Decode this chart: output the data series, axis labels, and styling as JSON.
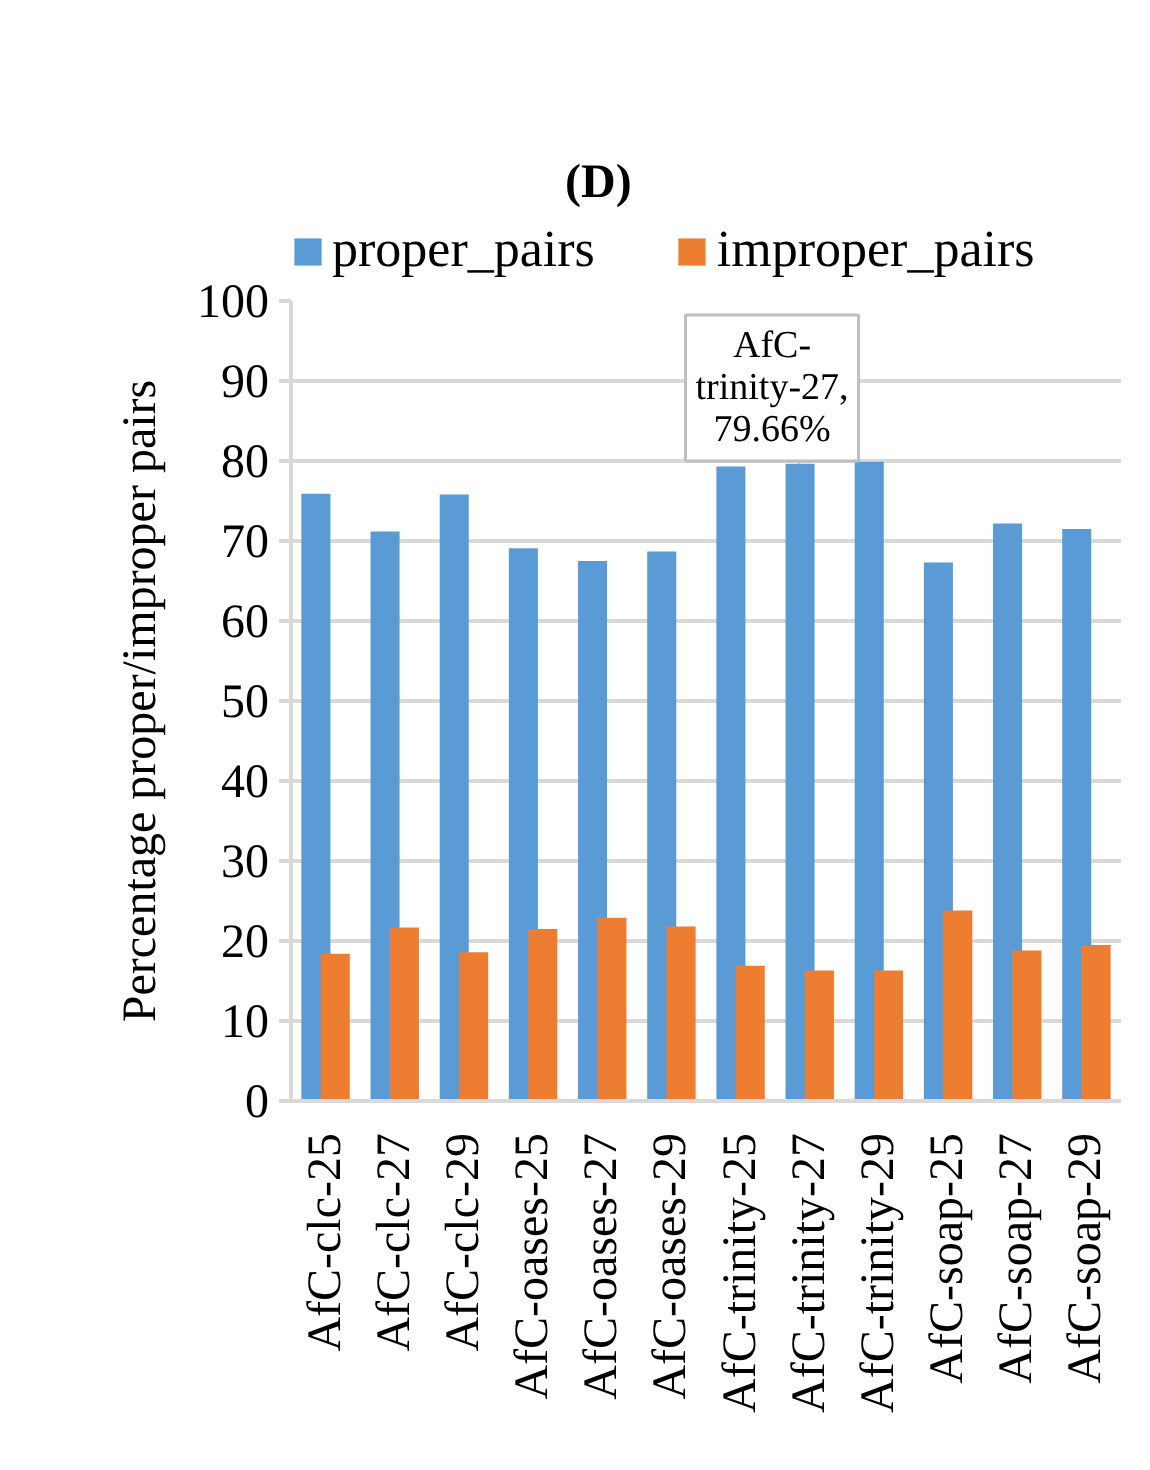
{
  "chart_data": {
    "type": "bar",
    "title": "(D)",
    "ylabel": "Percentage proper/improper pairs",
    "categories": [
      "AfC-clc-25",
      "AfC-clc-27",
      "AfC-clc-29",
      "AfC-oases-25",
      "AfC-oases-27",
      "AfC-oases-29",
      "AfC-trinity-25",
      "AfC-trinity-27",
      "AfC-trinity-29",
      "AfC-soap-25",
      "AfC-soap-27",
      "AfC-soap-29"
    ],
    "series": [
      {
        "name": "proper_pairs",
        "color": "#5b9bd5",
        "values": [
          75.9,
          71.2,
          75.8,
          69.1,
          67.5,
          68.7,
          79.3,
          79.66,
          79.9,
          67.3,
          72.2,
          71.5
        ]
      },
      {
        "name": "improper_pairs",
        "color": "#ed7d31",
        "values": [
          18.4,
          21.7,
          18.6,
          21.5,
          22.9,
          21.8,
          16.9,
          16.3,
          16.3,
          23.8,
          18.8,
          19.5
        ]
      }
    ],
    "ylim": [
      0,
      100
    ],
    "yticks": [
      0,
      10,
      20,
      30,
      40,
      50,
      60,
      70,
      80,
      90,
      100
    ],
    "grid": "y",
    "legend": "top",
    "annotations": [
      {
        "text": "AfC-trinity-27, 79.66%",
        "x": "AfC-trinity-27",
        "y": 79.66
      }
    ]
  }
}
